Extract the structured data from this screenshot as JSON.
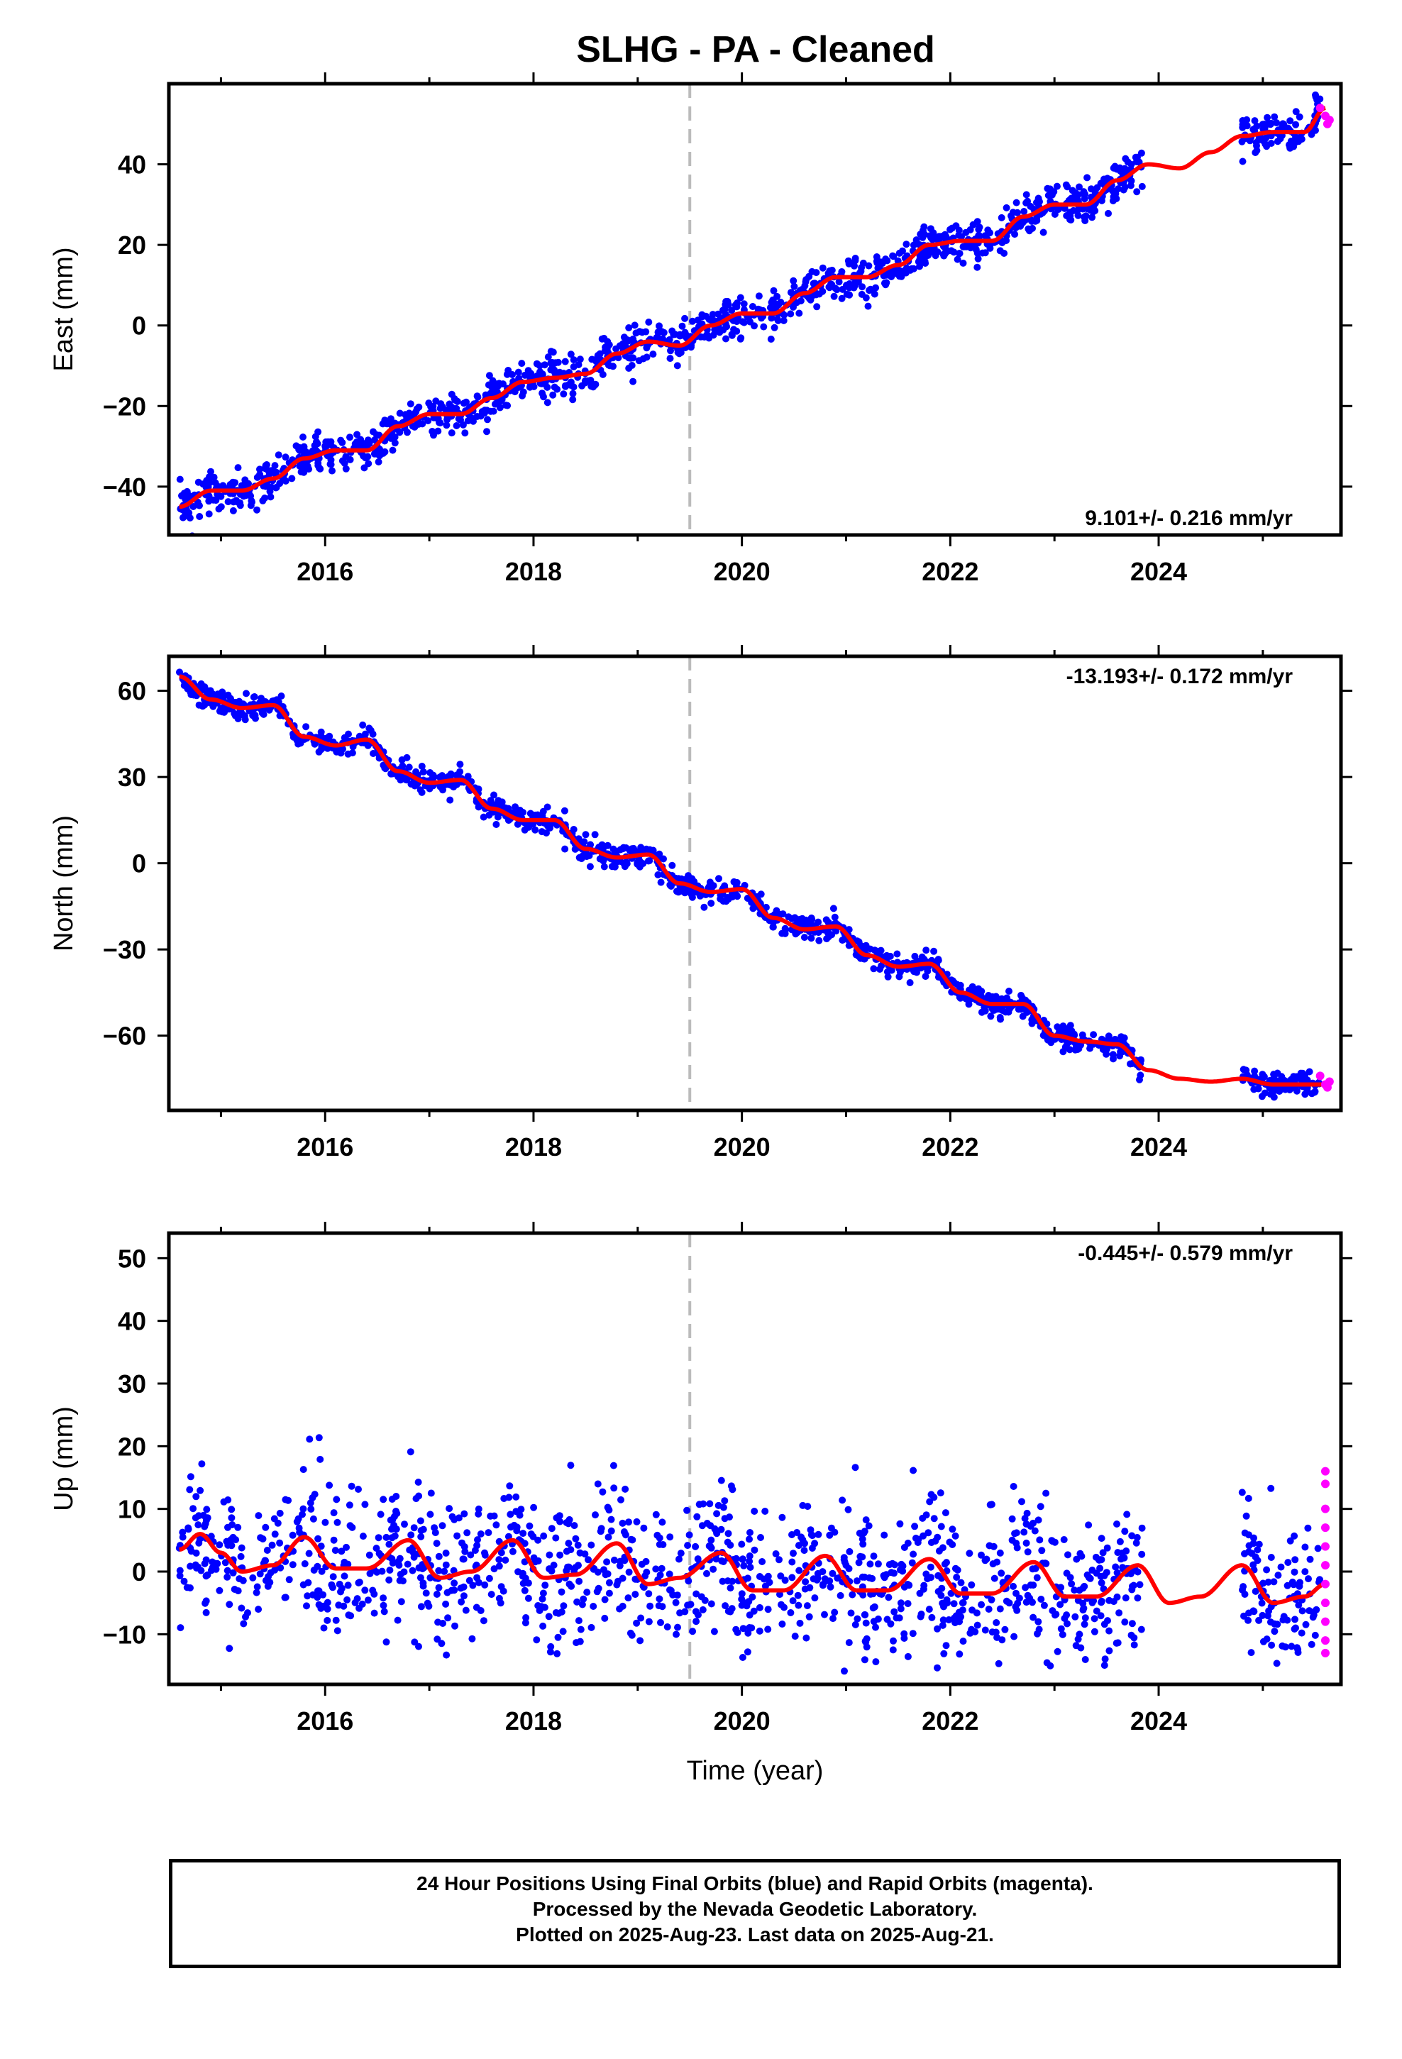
{
  "title": "SLHG  - PA - Cleaned",
  "footer": {
    "line1": "24 Hour Positions Using Final Orbits (blue) and Rapid Orbits (magenta).",
    "line2": "Processed by the Nevada Geodetic Laboratory.",
    "line3": "Plotted on 2025-Aug-23. Last data on 2025-Aug-21."
  },
  "colors": {
    "final_orbits": "#0000ff",
    "rapid_orbits": "#ff00ff",
    "model_fit": "#ff0000",
    "event_line": "#bbbbbb"
  },
  "chart_data": [
    {
      "type": "scatter",
      "component": "East",
      "ylabel": "East (mm)",
      "xlabel": "",
      "xlim": [
        2014.5,
        2025.75
      ],
      "ylim": [
        -52,
        60
      ],
      "x_ticks": [
        "2016",
        "2018",
        "2020",
        "2022",
        "2024"
      ],
      "y_ticks": [
        "−40",
        "−20",
        "0",
        "20",
        "40"
      ],
      "event_line_x": 2019.5,
      "rate_label": "9.101+/- 0.216 mm/yr",
      "series": [
        {
          "role": "model-fit",
          "x": [
            2014.6,
            2014.9,
            2015.2,
            2015.5,
            2015.8,
            2016.1,
            2016.4,
            2016.7,
            2017.0,
            2017.3,
            2017.6,
            2017.9,
            2018.2,
            2018.5,
            2018.8,
            2019.1,
            2019.4,
            2019.7,
            2020.0,
            2020.3,
            2020.6,
            2020.9,
            2021.2,
            2021.5,
            2021.8,
            2022.1,
            2022.4,
            2022.7,
            2023.0,
            2023.3,
            2023.6,
            2023.9,
            2024.2,
            2024.5,
            2024.8,
            2025.1,
            2025.4,
            2025.6
          ],
          "values": [
            -45,
            -41,
            -41,
            -38,
            -33,
            -31,
            -31,
            -25,
            -22,
            -22,
            -18,
            -14,
            -13,
            -12,
            -7,
            -4,
            -5,
            0,
            3,
            3,
            8,
            12,
            12,
            15,
            20,
            21,
            21,
            27,
            30,
            30,
            36,
            40,
            39,
            43,
            47,
            48,
            48,
            54
          ]
        },
        {
          "role": "final-orbits",
          "x_range": [
            2014.6,
            2025.55
          ],
          "data_gap": [
            2023.85,
            2024.8
          ],
          "scatter_mm": 2.5
        },
        {
          "role": "rapid-orbits",
          "x": [
            2025.55,
            2025.6,
            2025.62,
            2025.64
          ],
          "values": [
            54,
            52,
            50,
            51
          ]
        }
      ]
    },
    {
      "type": "scatter",
      "component": "North",
      "ylabel": "North (mm)",
      "xlabel": "",
      "xlim": [
        2014.5,
        2025.75
      ],
      "ylim": [
        -86,
        72
      ],
      "x_ticks": [
        "2016",
        "2018",
        "2020",
        "2022",
        "2024"
      ],
      "y_ticks": [
        "−60",
        "−30",
        "0",
        "30",
        "60"
      ],
      "event_line_x": 2019.5,
      "rate_label": "-13.193+/- 0.172 mm/yr",
      "series": [
        {
          "role": "model-fit",
          "x": [
            2014.6,
            2014.9,
            2015.2,
            2015.5,
            2015.8,
            2016.1,
            2016.4,
            2016.7,
            2017.0,
            2017.3,
            2017.6,
            2017.9,
            2018.2,
            2018.5,
            2018.8,
            2019.1,
            2019.4,
            2019.7,
            2020.0,
            2020.3,
            2020.6,
            2020.9,
            2021.2,
            2021.5,
            2021.8,
            2022.1,
            2022.4,
            2022.7,
            2023.0,
            2023.3,
            2023.6,
            2023.9,
            2024.2,
            2024.5,
            2024.8,
            2025.1,
            2025.4,
            2025.6
          ],
          "values": [
            65,
            57,
            54,
            55,
            44,
            41,
            43,
            32,
            28,
            29,
            19,
            15,
            15,
            5,
            2,
            3,
            -7,
            -10,
            -9,
            -19,
            -23,
            -22,
            -32,
            -36,
            -35,
            -45,
            -49,
            -49,
            -60,
            -62,
            -63,
            -72,
            -75,
            -76,
            -75,
            -77,
            -77,
            -77
          ]
        },
        {
          "role": "final-orbits",
          "x_range": [
            2014.6,
            2025.55
          ],
          "data_gap": [
            2023.85,
            2024.8
          ],
          "scatter_mm": 2
        },
        {
          "role": "rapid-orbits",
          "x": [
            2025.55,
            2025.6,
            2025.62,
            2025.64
          ],
          "values": [
            -74,
            -77,
            -78,
            -76
          ]
        }
      ]
    },
    {
      "type": "scatter",
      "component": "Up",
      "ylabel": "Up (mm)",
      "xlabel": "Time (year)",
      "xlim": [
        2014.5,
        2025.75
      ],
      "ylim": [
        -18,
        54
      ],
      "x_ticks": [
        "2016",
        "2018",
        "2020",
        "2022",
        "2024"
      ],
      "y_ticks": [
        "−10",
        "0",
        "10",
        "20",
        "30",
        "40",
        "50"
      ],
      "event_line_x": 2019.5,
      "rate_label": "-0.445+/- 0.579 mm/yr",
      "series": [
        {
          "role": "model-fit",
          "x": [
            2014.6,
            2014.8,
            2015.0,
            2015.2,
            2015.5,
            2015.8,
            2016.1,
            2016.4,
            2016.8,
            2017.1,
            2017.4,
            2017.8,
            2018.1,
            2018.4,
            2018.8,
            2019.1,
            2019.4,
            2019.8,
            2020.1,
            2020.4,
            2020.8,
            2021.1,
            2021.4,
            2021.8,
            2022.1,
            2022.4,
            2022.8,
            2023.1,
            2023.4,
            2023.8,
            2024.1,
            2024.4,
            2024.8,
            2025.1,
            2025.4,
            2025.6
          ],
          "values": [
            3.5,
            6,
            3,
            0,
            1,
            5.5,
            0.5,
            0.5,
            5,
            -1,
            0,
            5,
            -1,
            -0.5,
            4.5,
            -2,
            -1,
            3,
            -3,
            -3,
            2.5,
            -3,
            -3,
            2,
            -3.5,
            -3.5,
            1.5,
            -4,
            -4,
            1,
            -5,
            -4,
            1,
            -5,
            -4,
            -2
          ]
        },
        {
          "role": "final-orbits",
          "x_range": [
            2014.6,
            2025.55
          ],
          "data_gap": [
            2023.85,
            2024.8
          ],
          "scatter_mm": 5.5
        },
        {
          "role": "rapid-orbits",
          "x": [
            2025.6,
            2025.6,
            2025.6,
            2025.6,
            2025.6,
            2025.6,
            2025.6,
            2025.6,
            2025.6,
            2025.6,
            2025.6
          ],
          "values": [
            16,
            14,
            10,
            7,
            4,
            1,
            -2,
            -5,
            -8,
            -11,
            -13
          ]
        }
      ]
    }
  ]
}
